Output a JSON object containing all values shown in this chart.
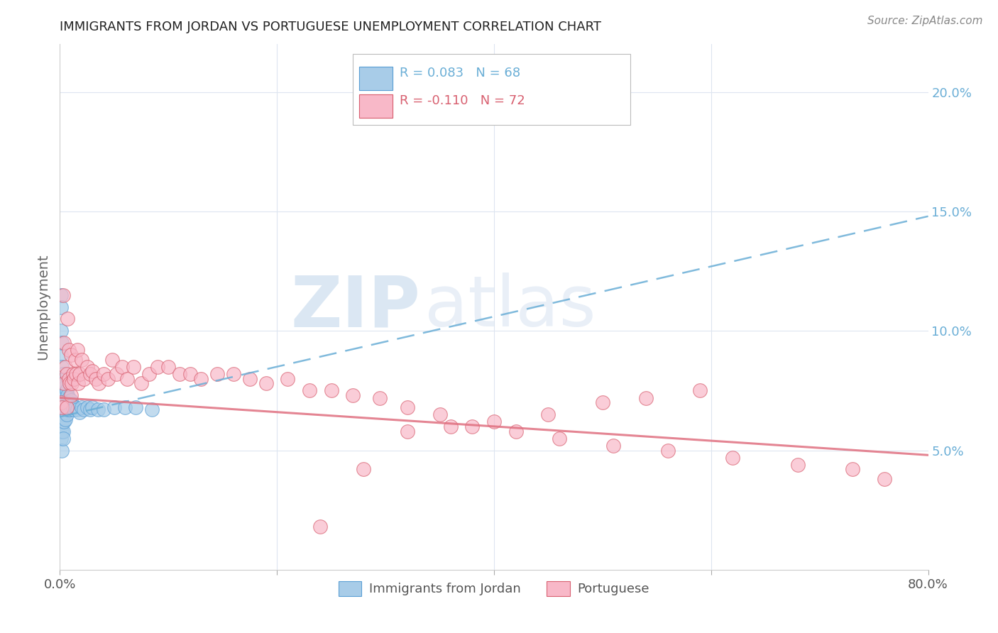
{
  "title": "IMMIGRANTS FROM JORDAN VS PORTUGUESE UNEMPLOYMENT CORRELATION CHART",
  "source": "Source: ZipAtlas.com",
  "ylabel": "Unemployment",
  "right_yticks": [
    "20.0%",
    "15.0%",
    "10.0%",
    "5.0%"
  ],
  "right_ytick_vals": [
    0.2,
    0.15,
    0.1,
    0.05
  ],
  "legend_blue_r": "R = 0.083",
  "legend_blue_n": "N = 68",
  "legend_pink_r": "R = -0.110",
  "legend_pink_n": "N = 72",
  "watermark_zip": "ZIP",
  "watermark_atlas": "atlas",
  "background_color": "#ffffff",
  "scatter_color_blue": "#a8cce8",
  "scatter_color_pink": "#f8b8c8",
  "trendline_blue_color": "#6aaed6",
  "trendline_pink_color": "#e8708080",
  "trendline_pink_solid": "#e07080",
  "grid_color": "#dde5f0",
  "right_axis_color": "#6aaed6",
  "blue_points_x": [
    0.001,
    0.001,
    0.001,
    0.001,
    0.001,
    0.001,
    0.001,
    0.001,
    0.001,
    0.002,
    0.002,
    0.002,
    0.002,
    0.002,
    0.002,
    0.002,
    0.002,
    0.002,
    0.003,
    0.003,
    0.003,
    0.003,
    0.003,
    0.003,
    0.003,
    0.003,
    0.003,
    0.004,
    0.004,
    0.004,
    0.004,
    0.004,
    0.004,
    0.005,
    0.005,
    0.005,
    0.005,
    0.005,
    0.006,
    0.006,
    0.006,
    0.006,
    0.007,
    0.007,
    0.007,
    0.008,
    0.008,
    0.009,
    0.009,
    0.01,
    0.01,
    0.011,
    0.012,
    0.013,
    0.014,
    0.016,
    0.018,
    0.02,
    0.022,
    0.025,
    0.028,
    0.03,
    0.035,
    0.04,
    0.05,
    0.06,
    0.07,
    0.085
  ],
  "blue_points_y": [
    0.115,
    0.11,
    0.1,
    0.09,
    0.075,
    0.07,
    0.065,
    0.06,
    0.055,
    0.095,
    0.085,
    0.075,
    0.072,
    0.068,
    0.065,
    0.062,
    0.058,
    0.05,
    0.082,
    0.078,
    0.075,
    0.072,
    0.068,
    0.065,
    0.062,
    0.058,
    0.055,
    0.08,
    0.076,
    0.072,
    0.068,
    0.065,
    0.062,
    0.078,
    0.074,
    0.07,
    0.066,
    0.063,
    0.075,
    0.072,
    0.068,
    0.065,
    0.073,
    0.07,
    0.067,
    0.072,
    0.068,
    0.07,
    0.067,
    0.071,
    0.068,
    0.069,
    0.068,
    0.067,
    0.068,
    0.067,
    0.066,
    0.068,
    0.067,
    0.068,
    0.067,
    0.068,
    0.067,
    0.067,
    0.068,
    0.068,
    0.068,
    0.067
  ],
  "pink_points_x": [
    0.001,
    0.002,
    0.003,
    0.004,
    0.004,
    0.005,
    0.006,
    0.006,
    0.007,
    0.008,
    0.008,
    0.009,
    0.01,
    0.01,
    0.011,
    0.012,
    0.013,
    0.014,
    0.015,
    0.016,
    0.017,
    0.018,
    0.02,
    0.022,
    0.025,
    0.028,
    0.03,
    0.033,
    0.036,
    0.04,
    0.044,
    0.048,
    0.052,
    0.057,
    0.062,
    0.068,
    0.075,
    0.082,
    0.09,
    0.1,
    0.11,
    0.12,
    0.13,
    0.145,
    0.16,
    0.175,
    0.19,
    0.21,
    0.23,
    0.25,
    0.27,
    0.295,
    0.32,
    0.35,
    0.38,
    0.42,
    0.46,
    0.51,
    0.56,
    0.62,
    0.68,
    0.73,
    0.76,
    0.59,
    0.54,
    0.5,
    0.45,
    0.4,
    0.36,
    0.32,
    0.28,
    0.24
  ],
  "pink_points_y": [
    0.07,
    0.068,
    0.115,
    0.095,
    0.078,
    0.085,
    0.082,
    0.068,
    0.105,
    0.092,
    0.08,
    0.078,
    0.09,
    0.073,
    0.078,
    0.082,
    0.08,
    0.088,
    0.082,
    0.092,
    0.078,
    0.082,
    0.088,
    0.08,
    0.085,
    0.082,
    0.083,
    0.08,
    0.078,
    0.082,
    0.08,
    0.088,
    0.082,
    0.085,
    0.08,
    0.085,
    0.078,
    0.082,
    0.085,
    0.085,
    0.082,
    0.082,
    0.08,
    0.082,
    0.082,
    0.08,
    0.078,
    0.08,
    0.075,
    0.075,
    0.073,
    0.072,
    0.068,
    0.065,
    0.06,
    0.058,
    0.055,
    0.052,
    0.05,
    0.047,
    0.044,
    0.042,
    0.038,
    0.075,
    0.072,
    0.07,
    0.065,
    0.062,
    0.06,
    0.058,
    0.042,
    0.018
  ],
  "xlim": [
    0.0,
    0.8
  ],
  "ylim": [
    0.0,
    0.22
  ],
  "blue_trend_x": [
    0.0,
    0.8
  ],
  "blue_trend_y": [
    0.064,
    0.148
  ],
  "pink_trend_x": [
    0.0,
    0.8
  ],
  "pink_trend_y": [
    0.072,
    0.048
  ]
}
